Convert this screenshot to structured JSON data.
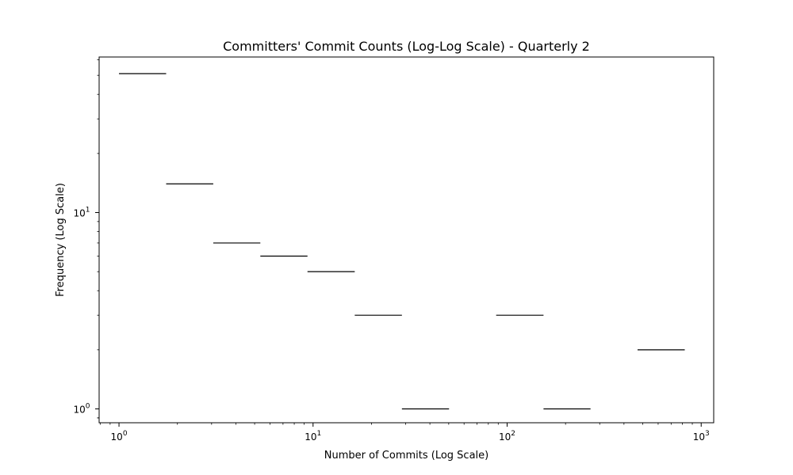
{
  "chart_data": {
    "type": "histogram",
    "title": "Committers' Commit Counts (Log-Log Scale) - Quarterly 2",
    "xlabel": "Number of Commits (Log Scale)",
    "ylabel": "Frequency (Log Scale)",
    "xscale": "log",
    "yscale": "log",
    "xlim": [
      0.79,
      1160
    ],
    "ylim": [
      0.85,
      62
    ],
    "x_major_ticks": [
      {
        "value": 1,
        "base": "10",
        "exp": "0"
      },
      {
        "value": 10,
        "base": "10",
        "exp": "1"
      },
      {
        "value": 100,
        "base": "10",
        "exp": "2"
      },
      {
        "value": 1000,
        "base": "10",
        "exp": "3"
      }
    ],
    "y_major_ticks": [
      {
        "value": 1,
        "base": "10",
        "exp": "0"
      },
      {
        "value": 10,
        "base": "10",
        "exp": "1"
      }
    ],
    "bars": [
      {
        "x0": 1.0,
        "x1": 1.75,
        "count": 51
      },
      {
        "x0": 1.75,
        "x1": 3.06,
        "count": 14
      },
      {
        "x0": 3.06,
        "x1": 5.35,
        "count": 7
      },
      {
        "x0": 5.35,
        "x1": 9.36,
        "count": 6
      },
      {
        "x0": 9.36,
        "x1": 16.4,
        "count": 5
      },
      {
        "x0": 16.4,
        "x1": 28.7,
        "count": 3
      },
      {
        "x0": 28.7,
        "x1": 50.2,
        "count": 1
      },
      {
        "x0": 50.2,
        "x1": 87.8,
        "count": 0
      },
      {
        "x0": 87.8,
        "x1": 154,
        "count": 3
      },
      {
        "x0": 154,
        "x1": 269,
        "count": 1
      },
      {
        "x0": 269,
        "x1": 470,
        "count": 0
      },
      {
        "x0": 470,
        "x1": 823,
        "count": 2
      }
    ]
  }
}
